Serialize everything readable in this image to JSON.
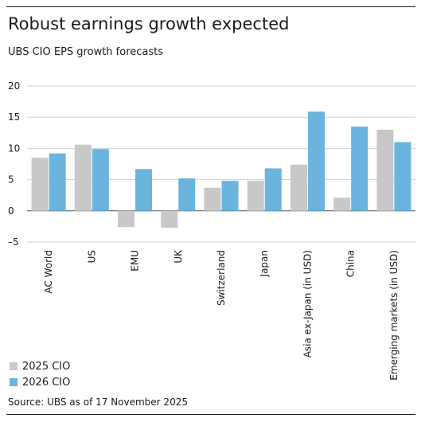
{
  "header": {
    "title": "Robust earnings growth expected",
    "subtitle": "UBS CIO EPS growth forecasts"
  },
  "footer": {
    "source": "Source: UBS as of 17 November 2025"
  },
  "colors": {
    "series_2025": "#c8c8c8",
    "series_2026": "#6ab4de",
    "gridline": "#cfcfcf",
    "zero_line": "#555555",
    "rule": "#222222"
  },
  "chart_data": {
    "type": "bar",
    "title": "Robust earnings growth expected",
    "subtitle": "UBS CIO EPS growth forecasts",
    "xlabel": "",
    "ylabel": "",
    "categories": [
      "AC World",
      "US",
      "EMU",
      "UK",
      "Switzerland",
      "Japan",
      "Asia ex-Japan (in USD)",
      "China",
      "Emerging markets (in USD)"
    ],
    "series": [
      {
        "name": "2025 CIO",
        "values": [
          8.5,
          10.6,
          -2.6,
          -2.7,
          3.7,
          4.8,
          7.4,
          2.1,
          13.0
        ]
      },
      {
        "name": "2026 CIO",
        "values": [
          9.2,
          9.9,
          6.7,
          5.2,
          4.8,
          6.8,
          15.9,
          13.5,
          11.0
        ]
      }
    ],
    "yticks": [
      -5,
      0,
      5,
      10,
      15,
      20
    ],
    "ytick_labels": [
      "–5",
      "0",
      "5",
      "10",
      "15",
      "20"
    ],
    "ylim": [
      -5,
      20
    ],
    "grid": true,
    "legend_position": "bottom-left"
  }
}
